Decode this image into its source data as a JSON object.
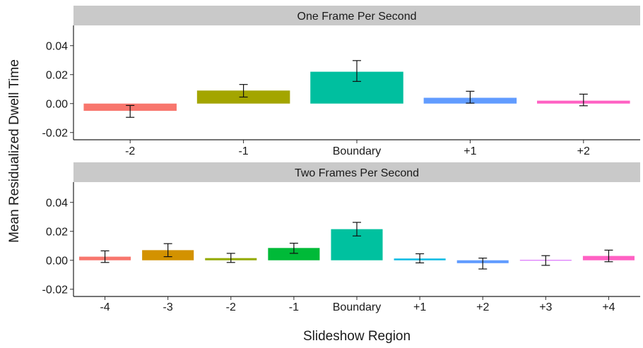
{
  "chart_data": [
    {
      "type": "bar",
      "panel_title": "One Frame Per Second",
      "categories": [
        "-2",
        "-1",
        "Boundary",
        "+1",
        "+2"
      ],
      "values": [
        -0.005,
        0.009,
        0.022,
        0.004,
        0.002
      ],
      "error_low": [
        -0.0095,
        0.0045,
        0.0153,
        0.0003,
        -0.0015
      ],
      "error_high": [
        -0.0013,
        0.0132,
        0.0297,
        0.0085,
        0.0065
      ],
      "colors": [
        "#F8766D",
        "#A3A500",
        "#00BF9F",
        "#619CFF",
        "#FF61C3"
      ],
      "yticks": [
        "0.04",
        "0.02",
        "0.00",
        "-0.02"
      ],
      "ylim": [
        -0.025,
        0.054
      ]
    },
    {
      "type": "bar",
      "panel_title": "Two Frames Per Second",
      "categories": [
        "-4",
        "-3",
        "-2",
        "-1",
        "Boundary",
        "+1",
        "+2",
        "+3",
        "+4"
      ],
      "values": [
        0.0025,
        0.007,
        0.0015,
        0.0085,
        0.0215,
        0.0012,
        -0.002,
        0.0,
        0.003
      ],
      "error_low": [
        -0.0015,
        0.0025,
        -0.0015,
        0.0048,
        0.0168,
        -0.0018,
        -0.006,
        -0.0035,
        -0.001
      ],
      "error_high": [
        0.0065,
        0.0115,
        0.0048,
        0.0118,
        0.0262,
        0.0045,
        0.0015,
        0.0032,
        0.007
      ],
      "colors": [
        "#F8766D",
        "#D39200",
        "#93AA00",
        "#00BA38",
        "#00C19F",
        "#00B9E3",
        "#619CFF",
        "#DB72FB",
        "#FF61C3"
      ],
      "yticks": [
        "0.04",
        "0.02",
        "0.00",
        "-0.02"
      ],
      "ylim": [
        -0.025,
        0.054
      ]
    }
  ],
  "axes": {
    "xlabel": "Slideshow Region",
    "ylabel": "Mean Residualized Dwell Time"
  }
}
